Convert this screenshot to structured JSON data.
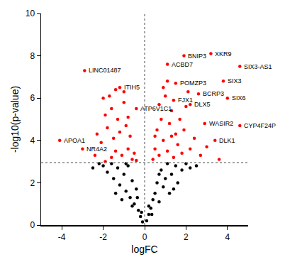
{
  "chart_data": {
    "type": "scatter",
    "xlabel": "logFC",
    "ylabel": "-log10(p-value)",
    "xlim": [
      -5,
      5
    ],
    "xticks": [
      -4,
      -2,
      0,
      2,
      4
    ],
    "ylim": [
      0,
      10
    ],
    "yticks": [
      0,
      2,
      4,
      6,
      8,
      10
    ],
    "grid": false,
    "marker": "circle",
    "reference_lines": {
      "x": 0,
      "y": 2.95
    },
    "series": [
      {
        "color": "#000000",
        "x": [
          -2.0,
          -1.8,
          -1.6,
          -1.5,
          -1.3,
          -1.2,
          -1.0,
          -0.9,
          -0.8,
          -0.7,
          -0.6,
          -0.5,
          -0.4,
          -0.3,
          -0.2,
          -0.1,
          0.1,
          0.2,
          0.3,
          0.4,
          0.5,
          0.6,
          0.7,
          0.8,
          0.9,
          1.0,
          1.1,
          1.2,
          1.3,
          1.5,
          1.6,
          1.8,
          2.0,
          2.2,
          -2.2,
          -1.1,
          -0.6,
          0.35,
          -0.35,
          0.7,
          -0.9,
          1.4,
          -1.4,
          0.2,
          -0.15,
          2.5,
          -2.5
        ],
        "values": [
          2.8,
          2.5,
          2.9,
          2.2,
          2.7,
          1.9,
          2.4,
          1.6,
          2.8,
          1.3,
          2.1,
          1.0,
          1.7,
          0.7,
          0.4,
          0.15,
          0.2,
          0.5,
          0.8,
          1.2,
          1.5,
          2.0,
          1.1,
          2.6,
          1.8,
          2.2,
          2.9,
          1.5,
          2.4,
          2.8,
          2.0,
          2.6,
          2.9,
          2.7,
          2.9,
          1.2,
          0.9,
          0.5,
          1.3,
          2.4,
          2.9,
          1.7,
          1.5,
          0.9,
          0.6,
          2.8,
          2.7
        ]
      },
      {
        "color": "#ff0000",
        "x": [
          -2.0,
          -1.9,
          -1.8,
          -1.7,
          -1.6,
          -1.5,
          -1.4,
          -1.3,
          -1.2,
          -1.1,
          -1.0,
          -0.9,
          -0.8,
          -0.7,
          -0.6,
          -0.5,
          -1.6,
          -2.1,
          -2.3,
          -1.9,
          -1.0,
          -0.8,
          -1.4,
          -2.4,
          -0.4,
          0.4,
          0.5,
          0.6,
          0.7,
          0.8,
          0.9,
          1.0,
          1.1,
          1.2,
          1.3,
          1.4,
          1.5,
          1.6,
          1.7,
          1.8,
          1.9,
          2.0,
          2.2,
          2.4,
          2.7,
          3.0,
          1.1,
          0.9,
          0.7,
          2.1,
          1.3,
          0.5,
          3.6
        ],
        "values": [
          6.0,
          5.2,
          4.6,
          6.1,
          5.5,
          4.1,
          3.5,
          5.0,
          4.4,
          3.3,
          5.8,
          4.7,
          3.6,
          4.2,
          3.1,
          3.4,
          3.2,
          3.9,
          4.3,
          3.0,
          6.3,
          5.1,
          6.4,
          3.3,
          3.05,
          3.1,
          3.6,
          4.5,
          3.3,
          5.0,
          4.0,
          6.1,
          3.5,
          4.8,
          5.4,
          3.2,
          4.3,
          3.8,
          5.0,
          3.4,
          4.5,
          5.6,
          3.6,
          4.1,
          3.3,
          3.7,
          6.8,
          6.5,
          5.7,
          6.3,
          4.2,
          4.2,
          3.1
        ]
      },
      {
        "color": "#ff0000",
        "labels": [
          "LINC01487",
          "ITIH5",
          "ATP6V1C1",
          "APOA1",
          "NR4A2",
          "BNIP3",
          "XKR9",
          "ACBD7",
          "SIX3-AS1",
          "POMZP3",
          "SIX3",
          "BCRP3",
          "FJX1",
          "DLX5",
          "SIX6",
          "WASIR2",
          "CYP4F24P",
          "DLK1"
        ],
        "x": [
          -2.9,
          -1.2,
          -0.4,
          -4.1,
          -3.0,
          1.9,
          3.2,
          1.1,
          4.6,
          1.5,
          3.8,
          2.6,
          1.4,
          2.2,
          4.0,
          2.9,
          4.6,
          3.4
        ],
        "values": [
          7.3,
          6.5,
          5.5,
          4.0,
          3.6,
          8.0,
          8.1,
          7.6,
          7.5,
          6.7,
          6.8,
          6.2,
          5.9,
          5.7,
          6.0,
          4.8,
          4.7,
          4.0
        ]
      }
    ]
  }
}
